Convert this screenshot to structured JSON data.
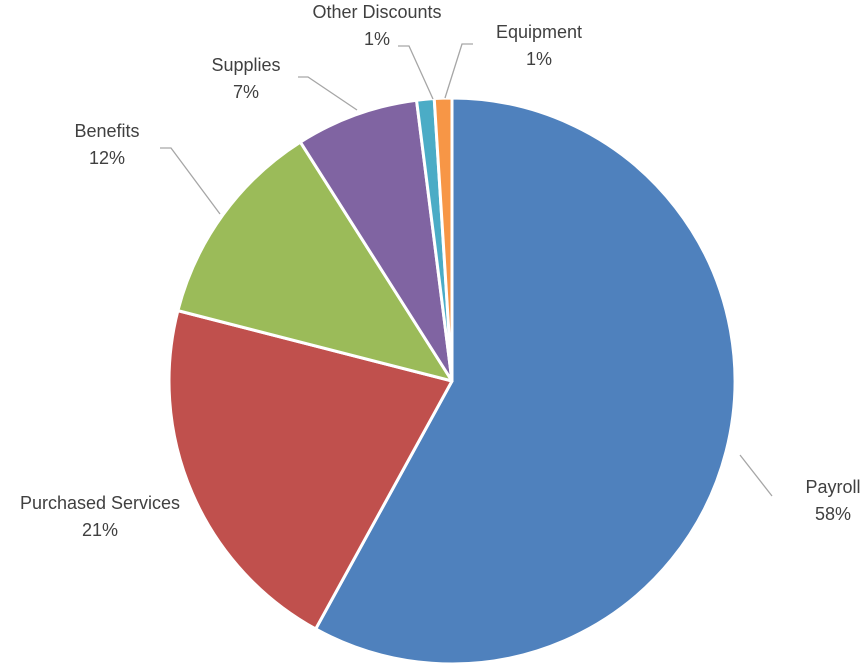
{
  "chart_data": {
    "type": "pie",
    "title": "",
    "slices": [
      {
        "name": "Payroll",
        "value": 58,
        "label": "58%",
        "color": "#4f81bd"
      },
      {
        "name": "Purchased Services",
        "value": 21,
        "label": "21%",
        "color": "#c0504d"
      },
      {
        "name": "Benefits",
        "value": 12,
        "label": "12%",
        "color": "#9bbb59"
      },
      {
        "name": "Supplies",
        "value": 7,
        "label": "7%",
        "color": "#8064a2"
      },
      {
        "name": "Other Discounts",
        "value": 1,
        "label": "1%",
        "color": "#4bacc6"
      },
      {
        "name": "Equipment",
        "value": 1,
        "label": "1%",
        "color": "#f79646"
      }
    ],
    "legend": "none",
    "data_labels": "outside-with-leader-lines"
  }
}
